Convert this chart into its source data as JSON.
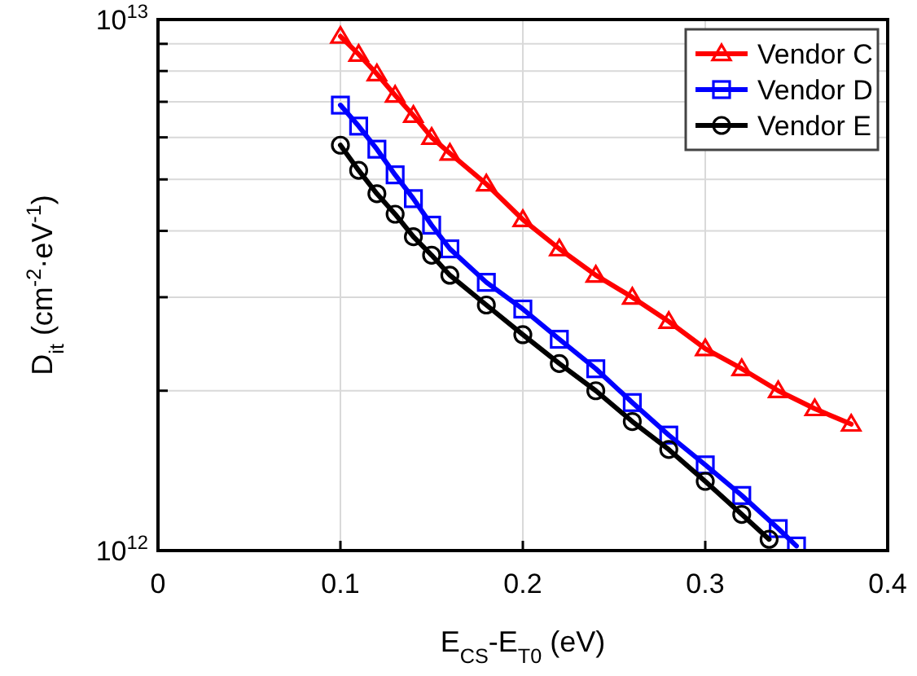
{
  "chart_data": {
    "type": "line",
    "xlabel": "E$_{CS}$-E$_{T0}$ (eV)",
    "ylabel": "D$_{it}$ (cm$^{-2}$·eV$^{-1}$)",
    "log": "y",
    "xlim": [
      0,
      0.4
    ],
    "xticks": [
      0,
      0.1,
      0.2,
      0.3,
      0.4
    ],
    "ylim": [
      1000000000000.0,
      10000000000000.0
    ],
    "yticks": [
      {
        "value": 1000000000000.0,
        "label": "10$^{12}$"
      },
      {
        "value": 2000000000000.0,
        "label": null
      },
      {
        "value": 3000000000000.0,
        "label": null
      },
      {
        "value": 4000000000000.0,
        "label": null
      },
      {
        "value": 5000000000000.0,
        "label": null
      },
      {
        "value": 6000000000000.0,
        "label": null
      },
      {
        "value": 7000000000000.0,
        "label": null
      },
      {
        "value": 8000000000000.0,
        "label": null
      },
      {
        "value": 9000000000000.0,
        "label": null
      },
      {
        "value": 10000000000000.0,
        "label": "10$^{13}$"
      }
    ],
    "grid": true,
    "legend": "top right",
    "line_style": "solid",
    "series": [
      {
        "name": "Vendor C",
        "color": "#ff0000",
        "marker": "triangle",
        "x": [
          0.1,
          0.11,
          0.12,
          0.13,
          0.14,
          0.15,
          0.16,
          0.18,
          0.2,
          0.22,
          0.24,
          0.26,
          0.28,
          0.3,
          0.32,
          0.34,
          0.36,
          0.38
        ],
        "values": [
          9300000000000.0,
          8600000000000.0,
          7900000000000.0,
          7200000000000.0,
          6600000000000.0,
          6000000000000.0,
          5600000000000.0,
          4900000000000.0,
          4200000000000.0,
          3700000000000.0,
          3300000000000.0,
          3000000000000.0,
          2700000000000.0,
          2400000000000.0,
          2200000000000.0,
          2000000000000.0,
          1850000000000.0,
          1730000000000.0
        ]
      },
      {
        "name": "Vendor D",
        "color": "#0000ff",
        "marker": "square",
        "x": [
          0.1,
          0.11,
          0.12,
          0.13,
          0.14,
          0.15,
          0.16,
          0.18,
          0.2,
          0.22,
          0.24,
          0.26,
          0.28,
          0.3,
          0.32,
          0.34,
          0.35
        ],
        "values": [
          6900000000000.0,
          6300000000000.0,
          5700000000000.0,
          5100000000000.0,
          4600000000000.0,
          4100000000000.0,
          3700000000000.0,
          3200000000000.0,
          2850000000000.0,
          2500000000000.0,
          2200000000000.0,
          1900000000000.0,
          1650000000000.0,
          1450000000000.0,
          1270000000000.0,
          1100000000000.0,
          1020000000000.0
        ]
      },
      {
        "name": "Vendor E",
        "color": "#000000",
        "marker": "circle",
        "x": [
          0.1,
          0.11,
          0.12,
          0.13,
          0.14,
          0.15,
          0.16,
          0.18,
          0.2,
          0.22,
          0.24,
          0.26,
          0.28,
          0.3,
          0.32,
          0.335
        ],
        "values": [
          5800000000000.0,
          5200000000000.0,
          4700000000000.0,
          4300000000000.0,
          3900000000000.0,
          3600000000000.0,
          3300000000000.0,
          2900000000000.0,
          2550000000000.0,
          2250000000000.0,
          2000000000000.0,
          1750000000000.0,
          1550000000000.0,
          1350000000000.0,
          1170000000000.0,
          1050000000000.0
        ]
      }
    ]
  }
}
